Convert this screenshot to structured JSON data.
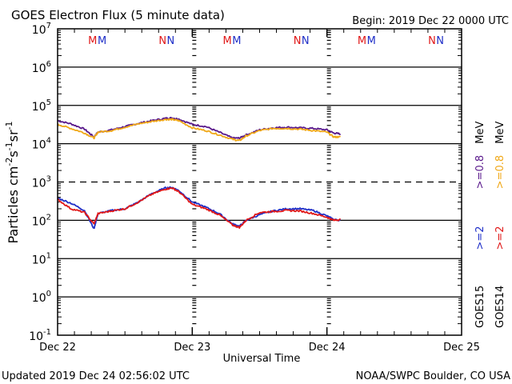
{
  "header": {
    "title": "GOES Electron Flux (5 minute data)",
    "begin": "Begin: 2019 Dec 22 0000 UTC"
  },
  "footer": {
    "updated": "Updated 2019 Dec 24 02:56:02 UTC",
    "credit": "NOAA/SWPC Boulder, CO USA"
  },
  "colors": {
    "goes15_ge2": "#1f2fc8",
    "goes14_ge2": "#e01818",
    "goes15_ge08": "#5a1a8c",
    "goes14_ge08": "#f0a818",
    "marker_red": "#e01818",
    "marker_blue": "#1f2fc8"
  },
  "legend": {
    "goes15": {
      "sat": "GOES15",
      "ge2": ">=2",
      "ge08": ">=0.8",
      "unit": "MeV"
    },
    "goes14": {
      "sat": "GOES14",
      "ge2": ">=2",
      "ge08": ">=0.8",
      "unit": "MeV"
    }
  },
  "markers": [
    {
      "label": "M",
      "color": "red",
      "day": 0.26
    },
    {
      "label": "M",
      "color": "blue",
      "day": 0.33
    },
    {
      "label": "N",
      "color": "red",
      "day": 0.78
    },
    {
      "label": "N",
      "color": "blue",
      "day": 0.84
    },
    {
      "label": "M",
      "color": "red",
      "day": 1.26
    },
    {
      "label": "M",
      "color": "blue",
      "day": 1.33
    },
    {
      "label": "N",
      "color": "red",
      "day": 1.78
    },
    {
      "label": "N",
      "color": "blue",
      "day": 1.84
    },
    {
      "label": "M",
      "color": "red",
      "day": 2.26
    },
    {
      "label": "M",
      "color": "blue",
      "day": 2.33
    },
    {
      "label": "N",
      "color": "red",
      "day": 2.78
    },
    {
      "label": "N",
      "color": "blue",
      "day": 2.84
    }
  ],
  "chart_data": {
    "type": "line",
    "title": "GOES Electron Flux (5 minute data)",
    "xlabel": "Universal Time",
    "ylabel": "Particles cm-2s-1sr-1",
    "yscale": "log",
    "ylim_exp": [
      -1,
      7
    ],
    "xlim_days": [
      0,
      3
    ],
    "x_tick_labels": [
      "Dec 22",
      "Dec 23",
      "Dec 24",
      "Dec 25"
    ],
    "y_tick_exponents": [
      "-1",
      "0",
      "1",
      "2",
      "3",
      "4",
      "5",
      "6",
      "7"
    ],
    "y_tick_base": "10",
    "threshold_dashed_exp": 3,
    "x_days": [
      0.0,
      0.1,
      0.2,
      0.27,
      0.3,
      0.4,
      0.5,
      0.6,
      0.7,
      0.8,
      0.85,
      0.9,
      1.0,
      1.1,
      1.2,
      1.3,
      1.35,
      1.4,
      1.5,
      1.6,
      1.7,
      1.8,
      1.9,
      2.0,
      2.05,
      2.1
    ],
    "series": [
      {
        "name": "GOES15 >=0.8 MeV",
        "key": "goes15_ge08",
        "values": [
          40000,
          33000,
          24000,
          15000,
          20000,
          23000,
          28000,
          34000,
          40000,
          46000,
          47000,
          44000,
          32000,
          28000,
          20000,
          14000,
          14000,
          17000,
          23000,
          26000,
          27000,
          26000,
          25000,
          23000,
          19000,
          18000
        ]
      },
      {
        "name": "GOES14 >=0.8 MeV",
        "key": "goes14_ge08",
        "values": [
          32000,
          25000,
          19000,
          14000,
          20000,
          22000,
          27000,
          33000,
          38000,
          43000,
          43000,
          40000,
          26000,
          22000,
          17000,
          13000,
          12000,
          16000,
          22000,
          25000,
          25000,
          24000,
          22000,
          20000,
          15000,
          15000
        ]
      },
      {
        "name": "GOES15 >=2 MeV",
        "key": "goes15_ge2",
        "values": [
          380,
          280,
          180,
          60,
          150,
          180,
          200,
          300,
          500,
          700,
          720,
          600,
          300,
          220,
          150,
          80,
          70,
          100,
          140,
          175,
          200,
          200,
          180,
          130,
          105,
          100
        ]
      },
      {
        "name": "GOES14 >=2 MeV",
        "key": "goes14_ge2",
        "values": [
          350,
          200,
          160,
          80,
          150,
          175,
          200,
          300,
          480,
          650,
          700,
          560,
          260,
          200,
          140,
          75,
          65,
          100,
          160,
          170,
          180,
          175,
          150,
          120,
          100,
          105
        ]
      }
    ]
  }
}
